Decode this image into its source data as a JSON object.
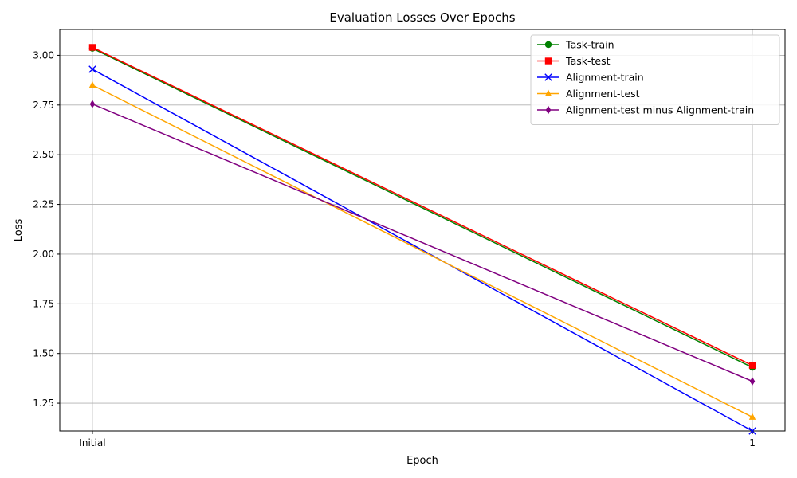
{
  "chart_data": {
    "type": "line",
    "title": "Evaluation Losses Over Epochs",
    "xlabel": "Epoch",
    "ylabel": "Loss",
    "categories": [
      "Initial",
      "1"
    ],
    "ylim": [
      1.11,
      3.13
    ],
    "yticks": [
      1.25,
      1.5,
      1.75,
      2.0,
      2.25,
      2.5,
      2.75,
      3.0
    ],
    "ytick_labels": [
      "1.25",
      "1.50",
      "1.75",
      "2.00",
      "2.25",
      "2.50",
      "2.75",
      "3.00"
    ],
    "grid": true,
    "legend_position": "top-right",
    "series": [
      {
        "name": "Task-train",
        "values": [
          3.035,
          1.43
        ],
        "color": "#008000",
        "marker": "circle"
      },
      {
        "name": "Task-test",
        "values": [
          3.04,
          1.44
        ],
        "color": "#ff0000",
        "marker": "square"
      },
      {
        "name": "Alignment-train",
        "values": [
          2.93,
          1.11
        ],
        "color": "#0000ff",
        "marker": "x"
      },
      {
        "name": "Alignment-test",
        "values": [
          2.85,
          1.18
        ],
        "color": "#ffa500",
        "marker": "triangle"
      },
      {
        "name": "Alignment-test minus Alignment-train",
        "values": [
          2.755,
          1.36
        ],
        "color": "#800080",
        "marker": "diamond"
      }
    ]
  }
}
